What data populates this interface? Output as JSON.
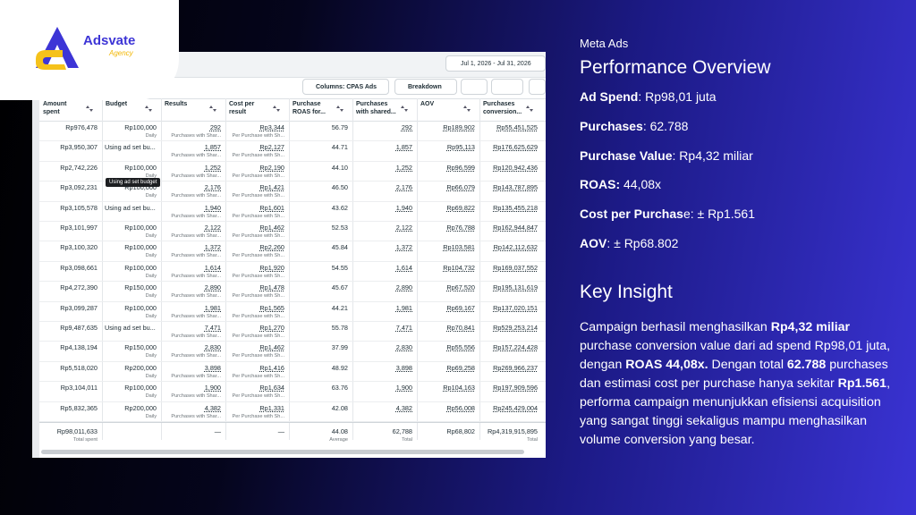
{
  "logo": {
    "name": "Adsvate",
    "tagline": "Agency"
  },
  "screenshot": {
    "date_range": "Jul 1, 2026 - Jul 31, 2026",
    "toolbar": [
      "Columns: CPAS Ads",
      "Breakdown"
    ],
    "headers": [
      "Amount spent",
      "Budget",
      "Results",
      "Cost per result",
      "Purchase ROAS for...",
      "Purchases with shared...",
      "AOV",
      "Purchases conversion..."
    ],
    "tooltip": "Using ad set budget",
    "rows": [
      [
        {
          "text": "Rp976,478"
        },
        {
          "text": "Rp100,000",
          "note": "Daily"
        },
        {
          "text": "292",
          "note": "Purchases with Shar..."
        },
        {
          "text": "Rp3,344",
          "note": "Per Purchase with Sh..."
        },
        {
          "text": "56.79"
        },
        {
          "text": "292"
        },
        {
          "text": "Rp189,902"
        },
        {
          "text": "Rp55,451,525"
        }
      ],
      [
        {
          "text": "Rp3,950,307"
        },
        {
          "text": "Using ad set bu..."
        },
        {
          "text": "1,857",
          "note": "Purchases with Shar..."
        },
        {
          "text": "Rp2,127",
          "note": "Per Purchase with Sh..."
        },
        {
          "text": "44.71"
        },
        {
          "text": "1,857"
        },
        {
          "text": "Rp95,113"
        },
        {
          "text": "Rp176,625,629"
        }
      ],
      [
        {
          "text": "Rp2,742,226"
        },
        {
          "text": "Rp100,000",
          "note": "Daily"
        },
        {
          "text": "1,252",
          "note": "Purchases with Shar..."
        },
        {
          "text": "Rp2,190",
          "note": "Per Purchase with Sh..."
        },
        {
          "text": "44.10"
        },
        {
          "text": "1,252"
        },
        {
          "text": "Rp96,599"
        },
        {
          "text": "Rp120,942,436"
        }
      ],
      [
        {
          "text": "Rp3,092,231"
        },
        {
          "text": "Rp100,000",
          "note": "Daily"
        },
        {
          "text": "2,176",
          "note": "Purchases with Shar..."
        },
        {
          "text": "Rp1,421",
          "note": "Per Purchase with Sh..."
        },
        {
          "text": "46.50"
        },
        {
          "text": "2,176"
        },
        {
          "text": "Rp66,079"
        },
        {
          "text": "Rp143,787,895"
        }
      ],
      [
        {
          "text": "Rp3,105,578"
        },
        {
          "text": "Using ad set bu..."
        },
        {
          "text": "1,940",
          "note": "Purchases with Shar..."
        },
        {
          "text": "Rp1,601",
          "note": "Per Purchase with Sh..."
        },
        {
          "text": "43.62"
        },
        {
          "text": "1,940"
        },
        {
          "text": "Rp69,822"
        },
        {
          "text": "Rp135,455,218"
        }
      ],
      [
        {
          "text": "Rp3,101,997"
        },
        {
          "text": "Rp100,000",
          "note": "Daily"
        },
        {
          "text": "2,122",
          "note": "Purchases with Shar..."
        },
        {
          "text": "Rp1,462",
          "note": "Per Purchase with Sh..."
        },
        {
          "text": "52.53"
        },
        {
          "text": "2,122"
        },
        {
          "text": "Rp76,788"
        },
        {
          "text": "Rp162,944,847"
        }
      ],
      [
        {
          "text": "Rp3,100,320"
        },
        {
          "text": "Rp100,000",
          "note": "Daily"
        },
        {
          "text": "1,372",
          "note": "Purchases with Shar..."
        },
        {
          "text": "Rp2,260",
          "note": "Per Purchase with Sh..."
        },
        {
          "text": "45.84"
        },
        {
          "text": "1,372"
        },
        {
          "text": "Rp103,581"
        },
        {
          "text": "Rp142,112,632"
        }
      ],
      [
        {
          "text": "Rp3,098,661"
        },
        {
          "text": "Rp100,000",
          "note": "Daily"
        },
        {
          "text": "1,614",
          "note": "Purchases with Shar..."
        },
        {
          "text": "Rp1,920",
          "note": "Per Purchase with Sh..."
        },
        {
          "text": "54.55"
        },
        {
          "text": "1,614"
        },
        {
          "text": "Rp104,732"
        },
        {
          "text": "Rp169,037,552"
        }
      ],
      [
        {
          "text": "Rp4,272,390"
        },
        {
          "text": "Rp150,000",
          "note": "Daily"
        },
        {
          "text": "2,890",
          "note": "Purchases with Shar..."
        },
        {
          "text": "Rp1,478",
          "note": "Per Purchase with Sh..."
        },
        {
          "text": "45.67"
        },
        {
          "text": "2,890"
        },
        {
          "text": "Rp67,520"
        },
        {
          "text": "Rp195,131,619"
        }
      ],
      [
        {
          "text": "Rp3,099,287"
        },
        {
          "text": "Rp100,000",
          "note": "Daily"
        },
        {
          "text": "1,981",
          "note": "Purchases with Shar..."
        },
        {
          "text": "Rp1,565",
          "note": "Per Purchase with Sh..."
        },
        {
          "text": "44.21"
        },
        {
          "text": "1,981"
        },
        {
          "text": "Rp69,167"
        },
        {
          "text": "Rp137,020,151"
        }
      ],
      [
        {
          "text": "Rp9,487,635"
        },
        {
          "text": "Using ad set bu..."
        },
        {
          "text": "7,471",
          "note": "Purchases with Shar..."
        },
        {
          "text": "Rp1,270",
          "note": "Per Purchase with Sh..."
        },
        {
          "text": "55.78"
        },
        {
          "text": "7,471"
        },
        {
          "text": "Rp70,841"
        },
        {
          "text": "Rp529,253,214"
        }
      ],
      [
        {
          "text": "Rp4,138,194"
        },
        {
          "text": "Rp150,000",
          "note": "Daily"
        },
        {
          "text": "2,830",
          "note": "Purchases with Shar..."
        },
        {
          "text": "Rp1,462",
          "note": "Per Purchase with Sh..."
        },
        {
          "text": "37.99"
        },
        {
          "text": "2,830"
        },
        {
          "text": "Rp55,556"
        },
        {
          "text": "Rp157,224,428"
        }
      ],
      [
        {
          "text": "Rp5,518,020"
        },
        {
          "text": "Rp200,000",
          "note": "Daily"
        },
        {
          "text": "3,898",
          "note": "Purchases with Shar..."
        },
        {
          "text": "Rp1,416",
          "note": "Per Purchase with Sh..."
        },
        {
          "text": "48.92"
        },
        {
          "text": "3,898"
        },
        {
          "text": "Rp69,258"
        },
        {
          "text": "Rp269,966,237"
        }
      ],
      [
        {
          "text": "Rp3,104,011"
        },
        {
          "text": "Rp100,000",
          "note": "Daily"
        },
        {
          "text": "1,900",
          "note": "Purchases with Shar..."
        },
        {
          "text": "Rp1,634",
          "note": "Per Purchase with Sh..."
        },
        {
          "text": "63.76"
        },
        {
          "text": "1,900"
        },
        {
          "text": "Rp104,163"
        },
        {
          "text": "Rp197,909,596"
        }
      ],
      [
        {
          "text": "Rp5,832,365"
        },
        {
          "text": "Rp200,000",
          "note": "Daily"
        },
        {
          "text": "4,382",
          "note": "Purchases with Shar..."
        },
        {
          "text": "Rp1,331",
          "note": "Per Purchase with Sh..."
        },
        {
          "text": "42.08"
        },
        {
          "text": "4,382"
        },
        {
          "text": "Rp56,008"
        },
        {
          "text": "Rp245,429,004"
        }
      ]
    ],
    "totals": [
      {
        "text": "Rp98,011,633",
        "note": "Total spent"
      },
      null,
      {
        "text": "—"
      },
      {
        "text": "—"
      },
      {
        "text": "44.08",
        "note": "Average"
      },
      {
        "text": "62,788",
        "note": "Total"
      },
      {
        "text": "Rp68,802"
      },
      {
        "text": "Rp4,319,915,895",
        "note": "Total"
      }
    ]
  },
  "panel": {
    "subtitle": "Meta Ads",
    "title": "Performance Overview",
    "metrics": [
      [
        {
          "text": "Ad Spend",
          "bold": true
        },
        {
          "text": ": Rp98,01 juta"
        }
      ],
      [
        {
          "text": "Purchases",
          "bold": true
        },
        {
          "text": ": 62.788"
        }
      ],
      [
        {
          "text": "Purchase Value",
          "bold": true
        },
        {
          "text": ": Rp4,32 miliar"
        }
      ],
      [
        {
          "text": "ROAS:",
          "bold": true
        },
        {
          "text": " 44,08x"
        }
      ],
      [
        {
          "text": "Cost per Purchas",
          "bold": true
        },
        {
          "text": "e: ± Rp1.561"
        }
      ],
      [
        {
          "text": "AOV",
          "bold": true
        },
        {
          "text": ": ± Rp68.802"
        }
      ]
    ],
    "insight_title": "Key Insight",
    "insight": [
      {
        "text": "Campaign berhasil menghasilkan "
      },
      {
        "text": "Rp4,32 miliar",
        "bold": true
      },
      {
        "text": " purchase conversion value dari ad spend Rp98,01 juta, dengan "
      },
      {
        "text": "ROAS 44,08x.",
        "bold": true
      },
      {
        "text": " Dengan total "
      },
      {
        "text": "62.788",
        "bold": true
      },
      {
        "text": " purchases dan estimasi cost per purchase hanya sekitar "
      },
      {
        "text": "Rp1.561",
        "bold": true
      },
      {
        "text": ", performa campaign menunjukkan efisiensi acquisition yang sangat tinggi sekaligus mampu menghasilkan volume conversion yang besar."
      }
    ]
  }
}
